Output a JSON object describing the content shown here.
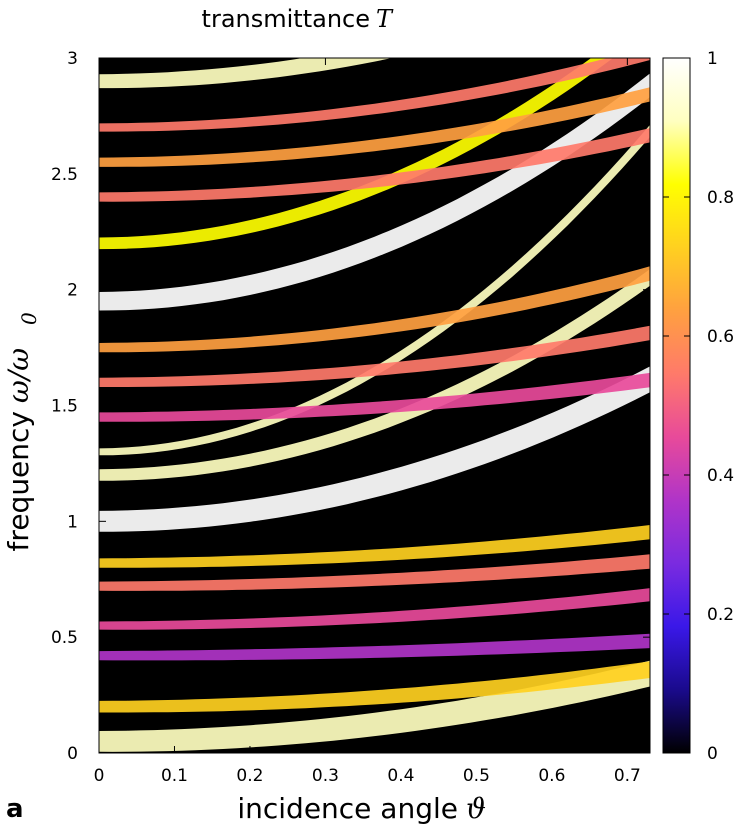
{
  "panel_label": "a",
  "chart_data": {
    "type": "heatmap",
    "title": "transmittance",
    "title_symbol": "T",
    "xlabel": "incidence angle",
    "xlabel_symbol": "ϑ",
    "ylabel": "frequency",
    "ylabel_symbol": "ω/ω",
    "ylabel_subscript": "0",
    "xlim": [
      0,
      0.73
    ],
    "ylim": [
      0,
      3
    ],
    "xticks": [
      0,
      0.1,
      0.2,
      0.3,
      0.4,
      0.5,
      0.6,
      0.7
    ],
    "xtick_labels": [
      "0",
      "0.1",
      "0.2",
      "0.3",
      "0.4",
      "0.5",
      "0.6",
      "0.7"
    ],
    "yticks": [
      0,
      0.5,
      1,
      1.5,
      2,
      2.5,
      3
    ],
    "ytick_labels": [
      "0",
      "0.5",
      "1",
      "1.5",
      "2",
      "2.5",
      "3"
    ],
    "colorbar": {
      "range": [
        0,
        1
      ],
      "ticks": [
        0,
        0.2,
        0.4,
        0.6,
        0.8,
        1
      ],
      "tick_labels": [
        "0",
        "0.2",
        "0.4",
        "0.6",
        "0.8",
        "1"
      ],
      "colormap": [
        "#000000",
        "#1a0a8c",
        "#3a18e8",
        "#7a2be0",
        "#b034c8",
        "#e84a9a",
        "#ff7a6a",
        "#ffa040",
        "#ffd020",
        "#ffff00",
        "#ffffc0",
        "#ffffff"
      ]
    },
    "bands": [
      {
        "w0": 0.05,
        "k": 0.55,
        "width": 0.09,
        "level": 0.95
      },
      {
        "w0": 0.2,
        "k": 0.3,
        "width": 0.05,
        "level": 0.75
      },
      {
        "w0": 0.42,
        "k": 0.12,
        "width": 0.04,
        "level": 0.4
      },
      {
        "w0": 0.55,
        "k": 0.25,
        "width": 0.035,
        "level": 0.45
      },
      {
        "w0": 0.72,
        "k": 0.2,
        "width": 0.04,
        "level": 0.5
      },
      {
        "w0": 0.82,
        "k": 0.25,
        "width": 0.04,
        "level": 0.7
      },
      {
        "w0": 1.0,
        "k": 1.15,
        "width": 0.09,
        "level": 0.98
      },
      {
        "w0": 1.2,
        "k": 1.6,
        "width": 0.05,
        "level": 0.9
      },
      {
        "w0": 1.3,
        "k": 2.6,
        "width": 0.03,
        "level": 0.95
      },
      {
        "w0": 1.45,
        "k": 0.3,
        "width": 0.04,
        "level": 0.45
      },
      {
        "w0": 1.6,
        "k": 0.4,
        "width": 0.04,
        "level": 0.5
      },
      {
        "w0": 1.75,
        "k": 0.6,
        "width": 0.04,
        "level": 0.6
      },
      {
        "w0": 1.95,
        "k": 1.75,
        "width": 0.08,
        "level": 0.98
      },
      {
        "w0": 2.2,
        "k": 1.8,
        "width": 0.05,
        "level": 0.85
      },
      {
        "w0": 2.4,
        "k": 0.5,
        "width": 0.04,
        "level": 0.55
      },
      {
        "w0": 2.55,
        "k": 0.55,
        "width": 0.04,
        "level": 0.6
      },
      {
        "w0": 2.7,
        "k": 0.6,
        "width": 0.035,
        "level": 0.55
      },
      {
        "w0": 2.9,
        "k": 0.9,
        "width": 0.06,
        "level": 0.9
      }
    ]
  }
}
